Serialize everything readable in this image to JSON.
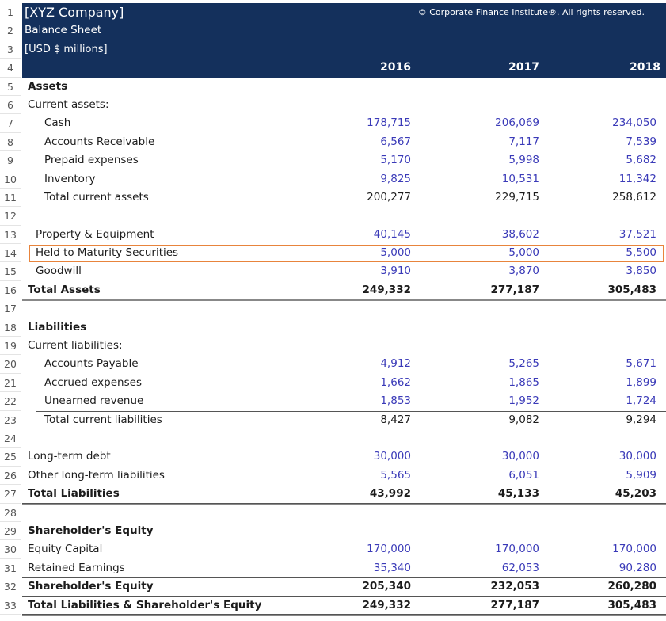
{
  "header": {
    "company": "[XYZ Company]",
    "title": "Balance Sheet",
    "units": "[USD $ millions]",
    "copyright": "© Corporate Finance Institute®. All rights reserved.",
    "years": [
      "2016",
      "2017",
      "2018"
    ]
  },
  "colors": {
    "header_bg": "#14305c",
    "input_values": "#3a3ab8",
    "highlight_border": "#e8843c"
  },
  "highlighted_row": 14,
  "rows": [
    {
      "n": "5",
      "label": "Assets",
      "indent": 0,
      "style": "section"
    },
    {
      "n": "6",
      "label": "Current assets:",
      "indent": 0
    },
    {
      "n": "7",
      "label": "Cash",
      "indent": 2,
      "values": [
        "178,715",
        "206,069",
        "234,050"
      ],
      "input": true
    },
    {
      "n": "8",
      "label": "Accounts Receivable",
      "indent": 2,
      "values": [
        "6,567",
        "7,117",
        "7,539"
      ],
      "input": true
    },
    {
      "n": "9",
      "label": "Prepaid expenses",
      "indent": 2,
      "values": [
        "5,170",
        "5,998",
        "5,682"
      ],
      "input": true
    },
    {
      "n": "10",
      "label": "Inventory",
      "indent": 2,
      "values": [
        "9,825",
        "10,531",
        "11,342"
      ],
      "input": true
    },
    {
      "n": "11",
      "label": "Total current assets",
      "indent": 2,
      "values": [
        "200,277",
        "229,715",
        "258,612"
      ],
      "style": "subtotal"
    },
    {
      "n": "12",
      "label": ""
    },
    {
      "n": "13",
      "label": "Property & Equipment",
      "indent": 1,
      "values": [
        "40,145",
        "38,602",
        "37,521"
      ],
      "input": true
    },
    {
      "n": "14",
      "label": "Held to Maturity Securities",
      "indent": 1,
      "values": [
        "5,000",
        "5,000",
        "5,500"
      ],
      "input": true
    },
    {
      "n": "15",
      "label": "Goodwill",
      "indent": 1,
      "values": [
        "3,910",
        "3,870",
        "3,850"
      ],
      "input": true
    },
    {
      "n": "16",
      "label": "Total Assets",
      "indent": 0,
      "values": [
        "249,332",
        "277,187",
        "305,483"
      ],
      "style": "total"
    },
    {
      "n": "17",
      "label": ""
    },
    {
      "n": "18",
      "label": "Liabilities",
      "indent": 0,
      "style": "section"
    },
    {
      "n": "19",
      "label": "Current liabilities:",
      "indent": 0
    },
    {
      "n": "20",
      "label": "Accounts Payable",
      "indent": 2,
      "values": [
        "4,912",
        "5,265",
        "5,671"
      ],
      "input": true
    },
    {
      "n": "21",
      "label": "Accrued expenses",
      "indent": 2,
      "values": [
        "1,662",
        "1,865",
        "1,899"
      ],
      "input": true
    },
    {
      "n": "22",
      "label": "Unearned revenue",
      "indent": 2,
      "values": [
        "1,853",
        "1,952",
        "1,724"
      ],
      "input": true
    },
    {
      "n": "23",
      "label": "Total current liabilities",
      "indent": 2,
      "values": [
        "8,427",
        "9,082",
        "9,294"
      ],
      "style": "subtotal"
    },
    {
      "n": "24",
      "label": ""
    },
    {
      "n": "25",
      "label": "Long-term debt",
      "indent": 0,
      "values": [
        "30,000",
        "30,000",
        "30,000"
      ],
      "input": true
    },
    {
      "n": "26",
      "label": "Other long-term liabilities",
      "indent": 0,
      "values": [
        "5,565",
        "6,051",
        "5,909"
      ],
      "input": true
    },
    {
      "n": "27",
      "label": "Total Liabilities",
      "indent": 0,
      "values": [
        "43,992",
        "45,133",
        "45,203"
      ],
      "style": "total"
    },
    {
      "n": "28",
      "label": ""
    },
    {
      "n": "29",
      "label": "Shareholder's Equity",
      "indent": 0,
      "style": "section"
    },
    {
      "n": "30",
      "label": "Equity Capital",
      "indent": 0,
      "values": [
        "170,000",
        "170,000",
        "170,000"
      ],
      "input": true
    },
    {
      "n": "31",
      "label": "Retained Earnings",
      "indent": 0,
      "values": [
        "35,340",
        "62,053",
        "90,280"
      ],
      "input": true
    },
    {
      "n": "32",
      "label": "Shareholder's Equity",
      "indent": 0,
      "values": [
        "205,340",
        "232,053",
        "260,280"
      ],
      "style": "subtotal-bold"
    },
    {
      "n": "33",
      "label": "Total Liabilities & Shareholder's Equity",
      "indent": 0,
      "values": [
        "249,332",
        "277,187",
        "305,483"
      ],
      "style": "total-top"
    }
  ]
}
